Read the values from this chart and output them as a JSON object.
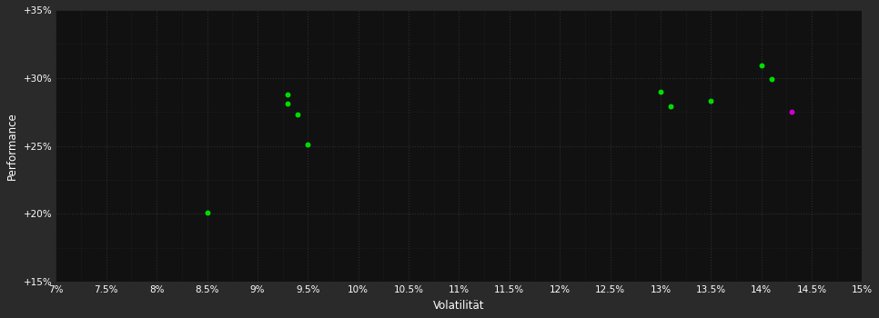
{
  "xlabel": "Volatilität",
  "ylabel": "Performance",
  "xlim": [
    0.07,
    0.15
  ],
  "ylim": [
    0.15,
    0.35
  ],
  "xticks": [
    0.07,
    0.075,
    0.08,
    0.085,
    0.09,
    0.095,
    0.1,
    0.105,
    0.11,
    0.115,
    0.12,
    0.125,
    0.13,
    0.135,
    0.14,
    0.145,
    0.15
  ],
  "xticklabels": [
    "7%",
    "7.5%",
    "8%",
    "8.5%",
    "9%",
    "9.5%",
    "10%",
    "10.5%",
    "11%",
    "11.5%",
    "12%",
    "12.5%",
    "13%",
    "13.5%",
    "14%",
    "14.5%",
    "15%"
  ],
  "yticks": [
    0.15,
    0.2,
    0.25,
    0.3,
    0.35
  ],
  "yticklabels": [
    "+15%",
    "+20%",
    "+25%",
    "+30%",
    "+35%"
  ],
  "outer_bg": "#2a2a2a",
  "inner_bg": "#111111",
  "grid_color": "#2e2e2e",
  "text_color": "#ffffff",
  "green_points": [
    [
      0.085,
      0.201
    ],
    [
      0.093,
      0.288
    ],
    [
      0.093,
      0.281
    ],
    [
      0.094,
      0.273
    ],
    [
      0.095,
      0.251
    ],
    [
      0.13,
      0.29
    ],
    [
      0.131,
      0.279
    ],
    [
      0.135,
      0.283
    ],
    [
      0.14,
      0.309
    ],
    [
      0.141,
      0.299
    ]
  ],
  "magenta_points": [
    [
      0.143,
      0.275
    ]
  ],
  "point_size": 18,
  "green_color": "#00dd00",
  "magenta_color": "#cc00cc"
}
